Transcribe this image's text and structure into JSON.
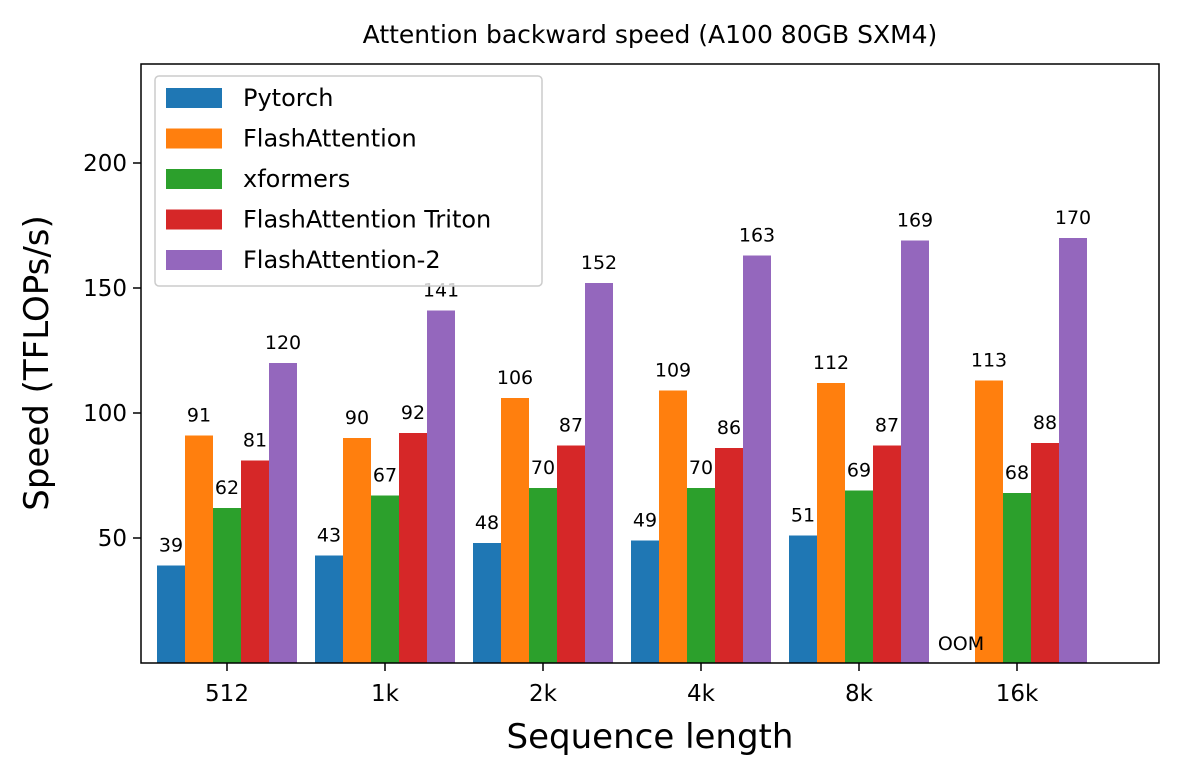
{
  "chart_data": {
    "type": "bar",
    "title": "Attention backward speed (A100 80GB SXM4)",
    "xlabel": "Sequence length",
    "ylabel": "Speed (TFLOPs/s)",
    "categories": [
      "512",
      "1k",
      "2k",
      "4k",
      "8k",
      "16k"
    ],
    "ylim": [
      0,
      240
    ],
    "yticks": [
      50,
      100,
      150,
      200
    ],
    "grid": false,
    "legend_position": "upper-left",
    "series": [
      {
        "name": "Pytorch",
        "color": "#1f77b4",
        "values": [
          39,
          43,
          48,
          49,
          51,
          null
        ],
        "labels": [
          "39",
          "43",
          "48",
          "49",
          "51",
          "OOM"
        ]
      },
      {
        "name": "FlashAttention",
        "color": "#ff7f0e",
        "values": [
          91,
          90,
          106,
          109,
          112,
          113
        ],
        "labels": [
          "91",
          "90",
          "106",
          "109",
          "112",
          "113"
        ]
      },
      {
        "name": "xformers",
        "color": "#2ca02c",
        "values": [
          62,
          67,
          70,
          70,
          69,
          68
        ],
        "labels": [
          "62",
          "67",
          "70",
          "70",
          "69",
          "68"
        ]
      },
      {
        "name": "FlashAttention Triton",
        "color": "#d62728",
        "values": [
          81,
          92,
          87,
          86,
          87,
          88
        ],
        "labels": [
          "81",
          "92",
          "87",
          "86",
          "87",
          "88"
        ]
      },
      {
        "name": "FlashAttention-2",
        "color": "#9467bd",
        "values": [
          120,
          141,
          152,
          163,
          169,
          170
        ],
        "labels": [
          "120",
          "141",
          "152",
          "163",
          "169",
          "170"
        ]
      }
    ]
  }
}
